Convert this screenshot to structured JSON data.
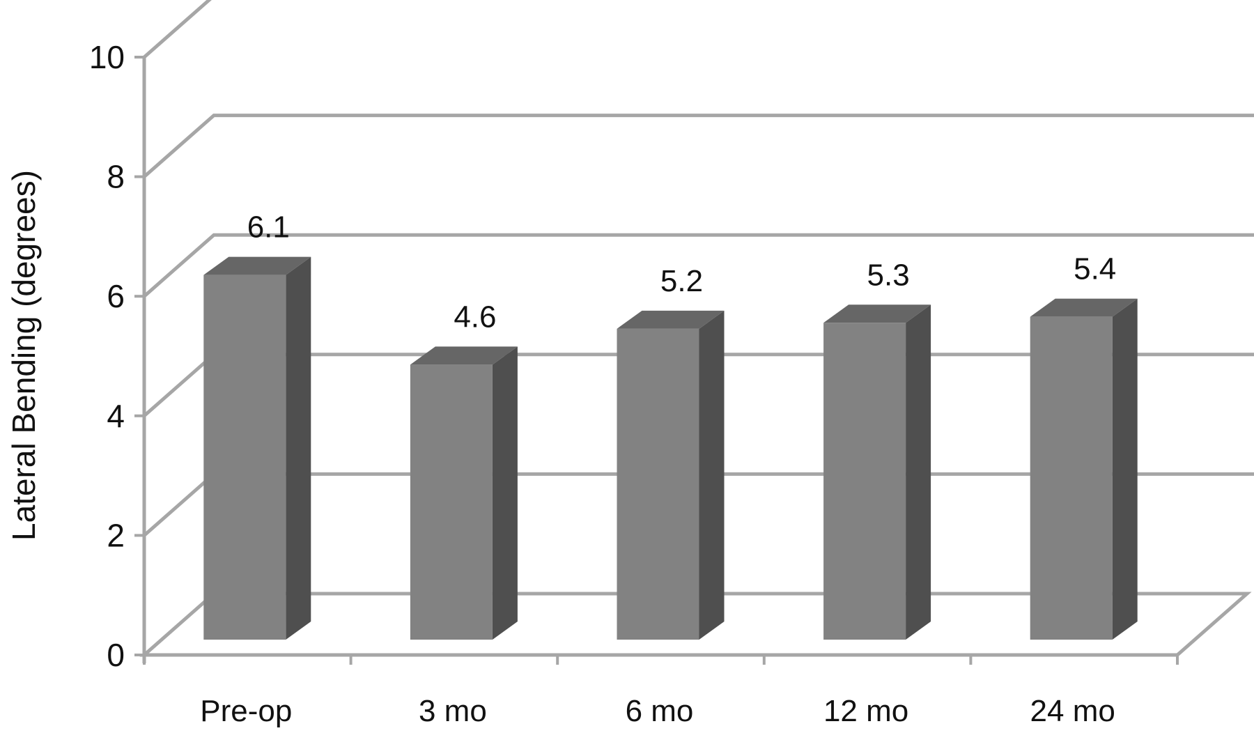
{
  "chart_data": {
    "type": "bar",
    "three_d": true,
    "categories": [
      "Pre-op",
      "3 mo",
      "6 mo",
      "12 mo",
      "24 mo"
    ],
    "values": [
      6.1,
      4.6,
      5.2,
      5.3,
      5.4
    ],
    "data_labels": [
      "6.1",
      "4.6",
      "5.2",
      "5.3",
      "5.4"
    ],
    "title": "",
    "xlabel": "",
    "ylabel": "Lateral Bending (degrees)",
    "ylim": [
      0,
      10
    ],
    "yticks": [
      0,
      2,
      4,
      6,
      8,
      10
    ],
    "grid": true,
    "legend": "none",
    "colors": {
      "bar_front": "#828282",
      "bar_top": "#666666",
      "bar_side": "#4f4f4f",
      "gridline": "#a6a6a6"
    }
  }
}
